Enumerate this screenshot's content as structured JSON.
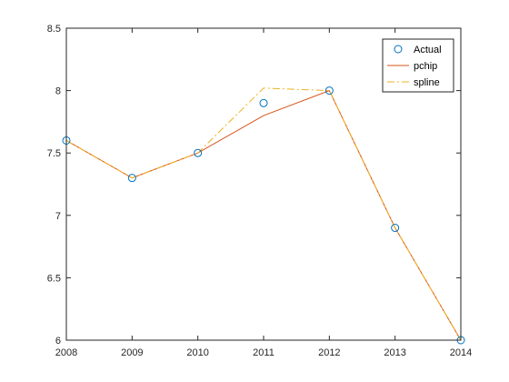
{
  "chart_data": {
    "type": "line",
    "title": "",
    "xlabel": "",
    "ylabel": "",
    "xlim": [
      2008,
      2014
    ],
    "ylim": [
      6,
      8.5
    ],
    "grid": false,
    "legend_position": "top-right",
    "x_ticks": [
      "2008",
      "2009",
      "2010",
      "2011",
      "2012",
      "2013",
      "2014"
    ],
    "y_ticks": [
      "6",
      "6.5",
      "7",
      "7.5",
      "8",
      "8.5"
    ],
    "series": [
      {
        "name": "Actual",
        "style": "markers",
        "marker": "circle",
        "color": "#0072BD",
        "x": [
          2008,
          2009,
          2010,
          2011,
          2012,
          2013,
          2014
        ],
        "y": [
          7.6,
          7.3,
          7.5,
          7.9,
          8.0,
          6.9,
          6.0
        ]
      },
      {
        "name": "pchip",
        "style": "solid",
        "color": "#D95319",
        "x": [
          2008,
          2009,
          2010,
          2011,
          2012,
          2013,
          2014
        ],
        "y": [
          7.6,
          7.3,
          7.5,
          7.8,
          8.0,
          6.9,
          6.0
        ]
      },
      {
        "name": "spline",
        "style": "dash-dot",
        "color": "#EDB120",
        "x": [
          2008,
          2009,
          2010,
          2011,
          2012,
          2013,
          2014
        ],
        "y": [
          7.6,
          7.3,
          7.5,
          8.02,
          8.0,
          6.9,
          6.0
        ]
      }
    ]
  }
}
